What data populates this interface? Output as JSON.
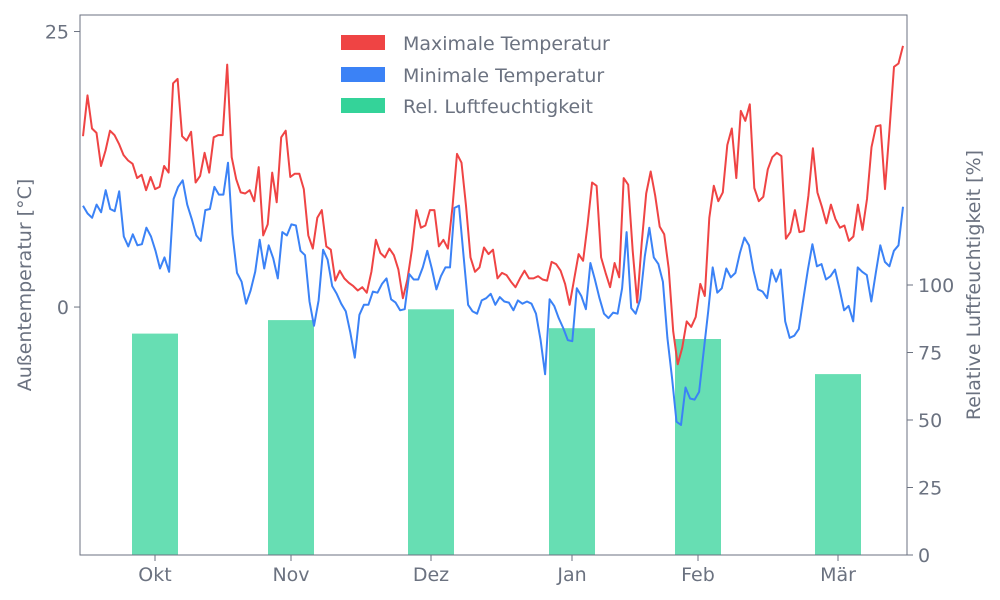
{
  "chart_data": {
    "type": "line+bar",
    "x_ticks": [
      "Okt",
      "Nov",
      "Dez",
      "Jan",
      "Feb",
      "Mär"
    ],
    "left_axis": {
      "label": "Außentemperatur [°C]",
      "ticks": [
        0,
        25
      ],
      "ylim": [
        -22.5,
        26.5
      ]
    },
    "right_axis": {
      "label": "Relative Luftfeuchtigkeit [%]",
      "ticks": [
        0,
        25,
        50,
        75,
        100
      ],
      "ylim": [
        0,
        200
      ]
    },
    "legend": {
      "position": "top-center",
      "entries": [
        "Maximale Temperatur",
        "Minimale Temperatur",
        "Rel. Luftfeuchtigkeit"
      ]
    },
    "colors": {
      "max": "#ef4444",
      "min": "#3b82f6",
      "humidity": "#34d399",
      "axis": "#6b7280"
    },
    "series": [
      {
        "name": "Maximale Temperatur",
        "axis": "left",
        "values": [
          15.5,
          19.2,
          16.2,
          15.8,
          12.8,
          14.2,
          16.0,
          15.6,
          14.8,
          13.8,
          13.3,
          13.0,
          11.7,
          12.0,
          10.6,
          11.8,
          10.7,
          10.9,
          12.8,
          12.2,
          20.3,
          20.7,
          15.5,
          15.1,
          15.9,
          11.3,
          11.9,
          14.0,
          12.2,
          15.4,
          15.6,
          15.6,
          22.0,
          13.6,
          11.6,
          10.4,
          10.3,
          10.6,
          9.6,
          12.7,
          6.5,
          7.5,
          12.2,
          9.5,
          15.4,
          16.0,
          11.8,
          12.1,
          12.1,
          10.7,
          6.5,
          5.3,
          8.1,
          8.8,
          5.5,
          5.2,
          2.4,
          3.3,
          2.6,
          2.2,
          1.9,
          1.5,
          1.8,
          1.3,
          3.2,
          6.1,
          4.9,
          4.5,
          5.3,
          4.7,
          3.4,
          0.8,
          2.5,
          5.2,
          8.8,
          7.2,
          7.4,
          8.8,
          8.8,
          5.5,
          6.1,
          5.3,
          9.1,
          13.9,
          13.1,
          9.2,
          4.5,
          3.2,
          3.6,
          5.4,
          4.8,
          5.2,
          2.6,
          3.1,
          2.9,
          2.3,
          1.8,
          2.6,
          3.3,
          2.6,
          2.6,
          2.8,
          2.5,
          2.4,
          4.1,
          3.9,
          3.3,
          2.1,
          0.2,
          2.5,
          4.8,
          4.2,
          7.5,
          11.3,
          11.0,
          4.5,
          3.1,
          1.8,
          4.0,
          2.7,
          11.7,
          11.1,
          5.1,
          0.4,
          5.8,
          10.3,
          12.3,
          10.1,
          7.3,
          6.6,
          3.5,
          -2.2,
          -5.2,
          -3.7,
          -1.3,
          -1.8,
          -0.9,
          2.1,
          1.0,
          8.1,
          11.0,
          9.6,
          10.4,
          14.7,
          16.2,
          11.7,
          17.8,
          16.9,
          18.4,
          10.8,
          9.6,
          10.0,
          12.5,
          13.6,
          14.0,
          13.7,
          6.2,
          6.8,
          8.8,
          6.8,
          6.9,
          10.1,
          14.4,
          10.4,
          9.1,
          7.6,
          9.3,
          8.0,
          7.2,
          7.4,
          6.0,
          6.4,
          9.3,
          7.0,
          9.8,
          14.5,
          16.4,
          16.5,
          10.7,
          16.1,
          21.8,
          22.1,
          23.7
        ]
      },
      {
        "name": "Minimale Temperatur",
        "axis": "left",
        "values": [
          9.2,
          8.5,
          8.1,
          9.3,
          8.6,
          10.6,
          8.9,
          8.7,
          10.5,
          6.4,
          5.5,
          6.6,
          5.6,
          5.7,
          7.2,
          6.4,
          5.1,
          3.5,
          4.5,
          3.2,
          9.8,
          10.9,
          11.5,
          9.3,
          8.0,
          6.5,
          6.0,
          8.8,
          8.9,
          10.9,
          10.2,
          10.2,
          13.1,
          6.6,
          3.1,
          2.3,
          0.3,
          1.5,
          3.2,
          6.1,
          3.5,
          5.6,
          4.4,
          2.6,
          6.8,
          6.5,
          7.5,
          7.4,
          5.1,
          4.7,
          0.5,
          -1.7,
          0.6,
          5.2,
          4.3,
          1.9,
          1.2,
          0.3,
          -0.4,
          -2.3,
          -4.6,
          -0.7,
          0.2,
          0.2,
          1.4,
          1.3,
          2.1,
          2.6,
          0.7,
          0.4,
          -0.3,
          -0.2,
          3.0,
          2.5,
          2.5,
          3.6,
          5.1,
          3.5,
          1.6,
          2.8,
          3.6,
          3.6,
          9.0,
          9.2,
          4.6,
          0.2,
          -0.4,
          -0.6,
          0.6,
          0.8,
          1.2,
          0.2,
          0.9,
          0.5,
          0.4,
          -0.3,
          0.6,
          0.3,
          0.5,
          0.3,
          -0.6,
          -3.0,
          -6.1,
          0.7,
          0.1,
          -1.0,
          -1.9,
          -3.0,
          -3.1,
          1.7,
          1.0,
          -0.2,
          4.0,
          2.5,
          0.8,
          -0.6,
          -1.0,
          -0.5,
          -0.6,
          1.7,
          6.8,
          -0.1,
          -0.6,
          0.7,
          4.6,
          7.2,
          4.5,
          3.9,
          2.3,
          -2.8,
          -6.4,
          -10.4,
          -10.7,
          -7.3,
          -8.3,
          -8.4,
          -7.7,
          -4.0,
          -0.4,
          3.6,
          1.3,
          1.7,
          3.5,
          2.7,
          3.1,
          4.9,
          6.3,
          5.6,
          3.3,
          1.6,
          1.4,
          0.8,
          3.4,
          2.3,
          3.4,
          -1.3,
          -2.8,
          -2.6,
          -2.0,
          0.7,
          3.4,
          5.7,
          3.7,
          3.9,
          2.5,
          2.8,
          3.4,
          1.6,
          -0.3,
          0.1,
          -1.3,
          3.6,
          3.2,
          2.9,
          0.5,
          3.1,
          5.6,
          4.1,
          3.7,
          5.1,
          5.6,
          9.1
        ]
      },
      {
        "name": "Rel. Luftfeuchtigkeit",
        "axis": "right",
        "type": "bar",
        "categories": [
          "Okt",
          "Nov",
          "Dez",
          "Jan",
          "Feb",
          "Mär"
        ],
        "values": [
          82,
          87,
          91,
          84,
          80,
          67
        ]
      }
    ]
  }
}
